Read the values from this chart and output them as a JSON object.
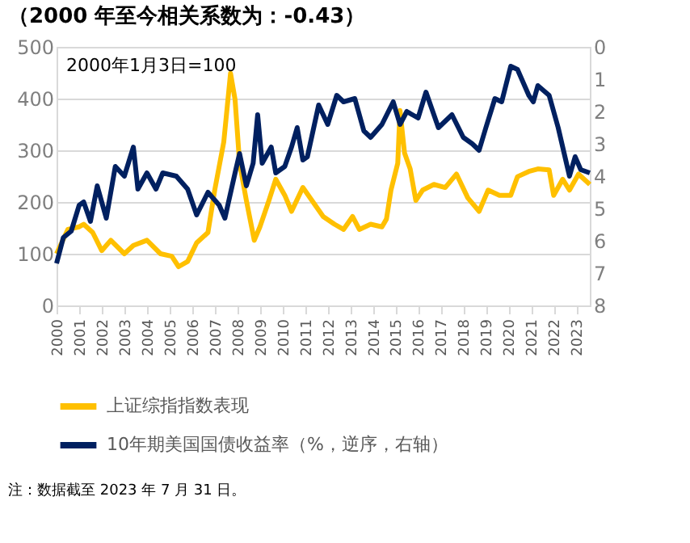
{
  "chart_data": {
    "type": "line",
    "title": "（2000 年至今相关系数为：-0.43）",
    "annotations": [
      "2000年1月3日=100",
      "注：数据截至 2023 年 7 月 31 日。"
    ],
    "xlim": [
      2000,
      2023.6
    ],
    "xticks": [
      2000,
      2001,
      2002,
      2003,
      2004,
      2005,
      2006,
      2007,
      2008,
      2009,
      2010,
      2011,
      2012,
      2013,
      2014,
      2015,
      2016,
      2017,
      2018,
      2019,
      2020,
      2021,
      2022,
      2023
    ],
    "ylim": [
      0,
      500
    ],
    "yticks": [
      0,
      100,
      200,
      300,
      400,
      500
    ],
    "y2lim": [
      8,
      0
    ],
    "y2ticks": [
      0,
      1,
      2,
      3,
      4,
      5,
      6,
      7,
      8
    ],
    "grid": "y",
    "legend": "bottom",
    "marker": "none",
    "line_style": "solid",
    "series": [
      {
        "name": "上证综指指数表现",
        "color": "#ffc000",
        "x": [
          2000,
          2000.5,
          2001.0,
          2001.2,
          2001.6,
          2002.0,
          2002.4,
          2003.0,
          2003.4,
          2004.0,
          2004.6,
          2005.1,
          2005.4,
          2005.8,
          2006.2,
          2006.7,
          2007.0,
          2007.4,
          2007.7,
          2007.9,
          2008.1,
          2008.4,
          2008.75,
          2009.0,
          2009.4,
          2009.7,
          2010.1,
          2010.4,
          2010.9,
          2011.3,
          2011.8,
          2012.3,
          2012.7,
          2013.1,
          2013.4,
          2013.9,
          2014.4,
          2014.6,
          2014.8,
          2015.1,
          2015.2,
          2015.4,
          2015.65,
          2015.9,
          2016.2,
          2016.7,
          2017.2,
          2017.7,
          2018.2,
          2018.7,
          2019.1,
          2019.6,
          2020.1,
          2020.4,
          2020.9,
          2021.3,
          2021.8,
          2022.0,
          2022.4,
          2022.7,
          2023.1,
          2023.6
        ],
        "values": [
          100,
          147,
          152,
          157,
          141,
          106,
          126,
          100,
          116,
          126,
          100,
          95,
          75,
          85,
          121,
          141,
          223,
          316,
          449,
          398,
          275,
          203,
          126,
          152,
          203,
          244,
          213,
          182,
          228,
          203,
          172,
          157,
          147,
          172,
          147,
          157,
          152,
          167,
          223,
          275,
          377,
          295,
          264,
          203,
          223,
          234,
          228,
          254,
          208,
          182,
          223,
          213,
          213,
          249,
          259,
          264,
          262,
          213,
          244,
          223,
          254,
          234
        ]
      },
      {
        "name": "10年期美国国债收益率（%，逆序，右轴）",
        "color": "#002060",
        "axis": "y2",
        "x": [
          2000.0,
          2000.3,
          2000.65,
          2001.0,
          2001.2,
          2001.5,
          2001.8,
          2002.2,
          2002.6,
          2003.0,
          2003.4,
          2003.6,
          2004.0,
          2004.4,
          2004.7,
          2005.3,
          2005.8,
          2006.2,
          2006.7,
          2007.2,
          2007.45,
          2007.9,
          2008.1,
          2008.4,
          2008.7,
          2008.9,
          2009.1,
          2009.5,
          2009.7,
          2010.1,
          2010.4,
          2010.65,
          2010.9,
          2011.1,
          2011.6,
          2012.0,
          2012.4,
          2012.7,
          2013.2,
          2013.6,
          2013.9,
          2014.4,
          2014.9,
          2015.2,
          2015.5,
          2016.0,
          2016.35,
          2016.9,
          2017.5,
          2018.0,
          2018.4,
          2018.7,
          2019.0,
          2019.4,
          2019.7,
          2020.1,
          2020.4,
          2020.9,
          2021.1,
          2021.3,
          2021.8,
          2022.2,
          2022.5,
          2022.7,
          2022.95,
          2023.2,
          2023.6
        ],
        "values": [
          6.7,
          5.9,
          5.7,
          4.9,
          4.8,
          5.4,
          4.3,
          5.3,
          3.7,
          4.0,
          3.1,
          4.4,
          3.9,
          4.4,
          3.9,
          4.0,
          4.4,
          5.2,
          4.5,
          4.9,
          5.3,
          3.9,
          3.3,
          4.3,
          3.6,
          2.1,
          3.6,
          3.1,
          3.9,
          3.7,
          3.1,
          2.5,
          3.5,
          3.4,
          1.8,
          2.4,
          1.5,
          1.7,
          1.6,
          2.6,
          2.8,
          2.4,
          1.7,
          2.4,
          2.0,
          2.2,
          1.4,
          2.5,
          2.1,
          2.8,
          3.0,
          3.2,
          2.5,
          1.6,
          1.7,
          0.6,
          0.7,
          1.5,
          1.7,
          1.2,
          1.5,
          2.5,
          3.4,
          4.0,
          3.4,
          3.8,
          3.9
        ]
      }
    ]
  }
}
